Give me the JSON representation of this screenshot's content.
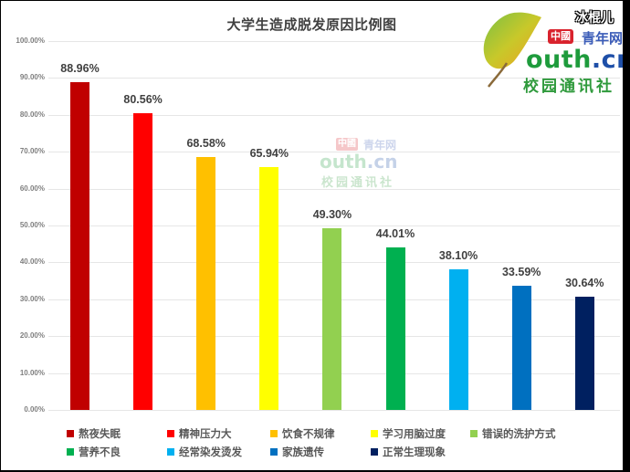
{
  "chart_data": {
    "type": "bar",
    "title": "大学生造成脱发原因比例图",
    "xlabel": "",
    "ylabel": "",
    "ylim": [
      0,
      100
    ],
    "grid": true,
    "legend_position": "bottom",
    "yticks": [
      "0.00%",
      "10.00%",
      "20.00%",
      "30.00%",
      "40.00%",
      "50.00%",
      "60.00%",
      "70.00%",
      "80.00%",
      "90.00%",
      "100.00%"
    ],
    "categories": [
      "熬夜失眠",
      "精神压力大",
      "饮食不规律",
      "学习用脑过度",
      "错误的洗护方式",
      "营养不良",
      "经常染发烫发",
      "家族遗传",
      "正常生理现象"
    ],
    "values": [
      88.96,
      80.56,
      68.58,
      65.94,
      49.3,
      44.01,
      38.1,
      33.59,
      30.64
    ],
    "value_labels": [
      "88.96%",
      "80.56%",
      "68.58%",
      "65.94%",
      "49.30%",
      "44.01%",
      "38.10%",
      "33.59%",
      "30.64%"
    ],
    "colors": [
      "#c00000",
      "#ff0000",
      "#ffc000",
      "#ffff00",
      "#92d050",
      "#00b050",
      "#00b0f0",
      "#0070c0",
      "#002060"
    ]
  },
  "logo": {
    "brand_box": "中國",
    "brand_name": "青年网",
    "domain_main": "outh",
    "domain_tld": ".cn",
    "subtitle": "校园通讯社"
  },
  "watermark": "冰棍儿"
}
